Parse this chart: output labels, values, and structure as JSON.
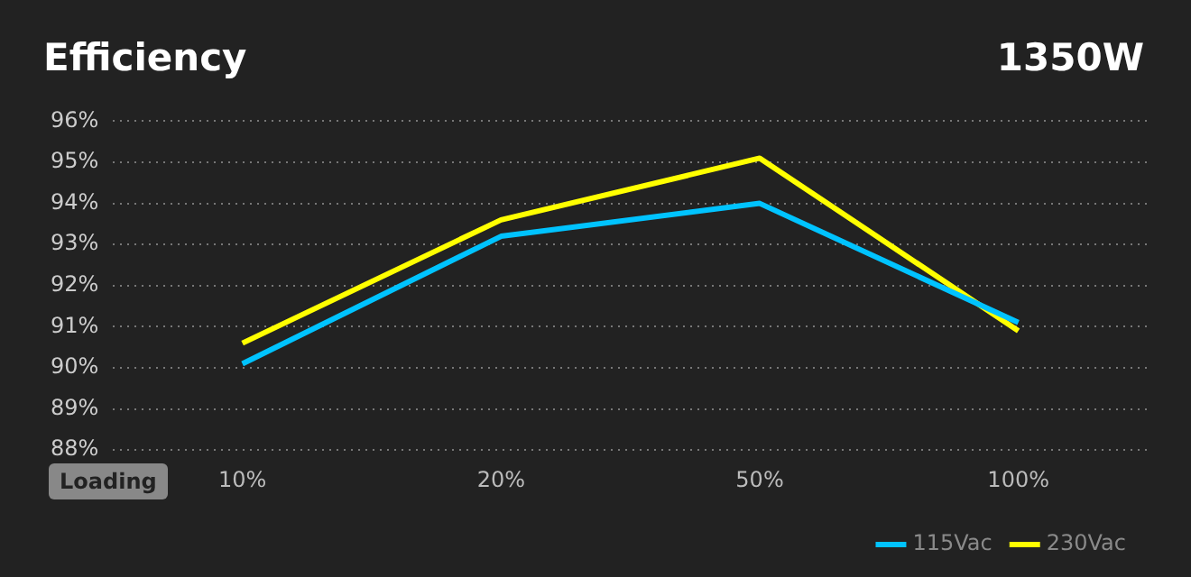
{
  "chart_data": {
    "type": "line",
    "title": "Efficiency",
    "subtitle": "1350W",
    "categories": [
      "10%",
      "20%",
      "50%",
      "100%"
    ],
    "series": [
      {
        "name": "115Vac",
        "color": "#00c3ff",
        "values": [
          90.1,
          93.2,
          94.0,
          91.1
        ]
      },
      {
        "name": "230Vac",
        "color": "#ffff00",
        "values": [
          90.6,
          93.6,
          95.1,
          90.9
        ]
      }
    ],
    "ylim": [
      88,
      96
    ],
    "yticks": [
      {
        "value": 88,
        "label": "88%"
      },
      {
        "value": 89,
        "label": "89%"
      },
      {
        "value": 90,
        "label": "90%"
      },
      {
        "value": 91,
        "label": "91%"
      },
      {
        "value": 92,
        "label": "92%"
      },
      {
        "value": 93,
        "label": "93%"
      },
      {
        "value": 94,
        "label": "94%"
      },
      {
        "value": 95,
        "label": "95%"
      },
      {
        "value": 96,
        "label": "96%"
      }
    ],
    "grid": "y",
    "legend": "bottom right",
    "marker": "none",
    "line_style": "solid",
    "annotations": [
      "Loading"
    ]
  }
}
